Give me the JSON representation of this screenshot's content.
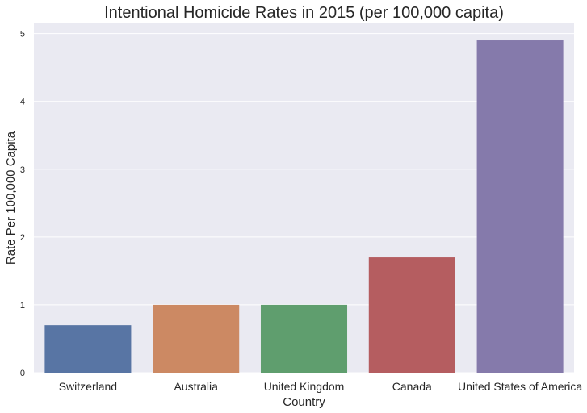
{
  "chart_data": {
    "type": "bar",
    "title": "Intentional Homicide Rates in 2015 (per 100,000 capita)",
    "xlabel": "Country",
    "ylabel": "Rate Per 100,000 Capita",
    "categories": [
      "Switzerland",
      "Australia",
      "United Kingdom",
      "Canada",
      "United States of America"
    ],
    "values": [
      0.7,
      1.0,
      1.0,
      1.7,
      4.9
    ],
    "colors": [
      "#5875a4",
      "#cc8963",
      "#5f9e6e",
      "#b55d60",
      "#857aab"
    ],
    "ylim": [
      0,
      5.15
    ],
    "yticks": [
      "0",
      "1",
      "2",
      "3",
      "4",
      "5"
    ],
    "grid": true,
    "background": "#eaeaf2"
  }
}
